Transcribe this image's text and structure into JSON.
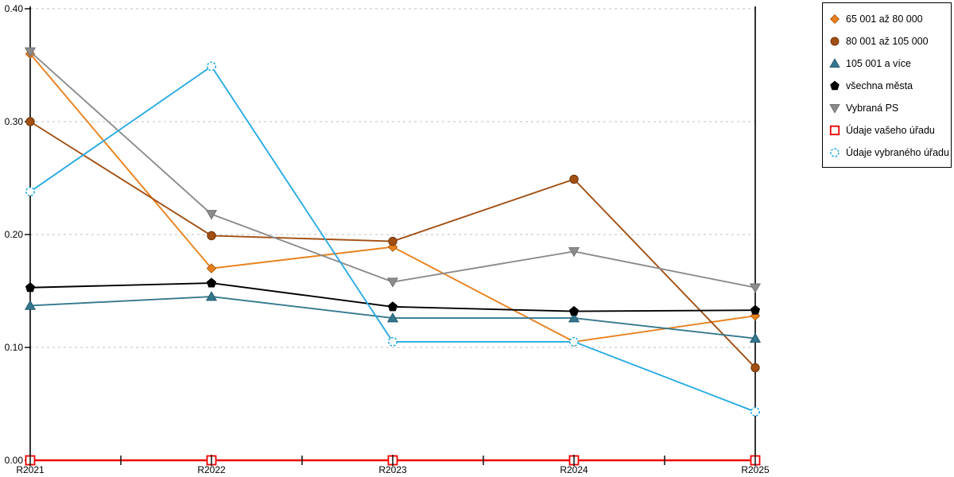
{
  "chart_data": {
    "type": "line",
    "title": "",
    "xlabel": "",
    "ylabel": "",
    "categories": [
      "R2021",
      "R2022",
      "R2023",
      "R2024",
      "R2025"
    ],
    "series": [
      {
        "name": "65 001 až 80 000",
        "marker": "diamond",
        "color": "#E8811C",
        "edge": "#B05A10",
        "values": [
          0.36,
          0.17,
          0.189,
          0.105,
          0.128
        ]
      },
      {
        "name": "80 001 až 105 000",
        "marker": "circle",
        "color": "#A24F13",
        "edge": "#6E3409",
        "values": [
          0.3,
          0.199,
          0.194,
          0.249,
          0.082
        ]
      },
      {
        "name": "105 001 a více",
        "marker": "triangle-up",
        "color": "#35788E",
        "edge": "#20576B",
        "values": [
          0.137,
          0.145,
          0.126,
          0.126,
          0.108
        ]
      },
      {
        "name": "všechna města",
        "marker": "pentagon",
        "color": "#000000",
        "edge": "#000000",
        "values": [
          0.153,
          0.157,
          0.136,
          0.132,
          0.133
        ]
      },
      {
        "name": "Vybraná PS",
        "marker": "triangle-down",
        "color": "#8C8C8C",
        "edge": "#707070",
        "values": [
          0.362,
          0.218,
          0.158,
          0.185,
          0.153
        ]
      },
      {
        "name": "Údaje vašeho úřadu",
        "marker": "open-square",
        "color": "#EE0000",
        "edge": "#EE0000",
        "values": [
          0.0,
          0.0,
          0.0,
          0.0,
          0.0
        ]
      },
      {
        "name": "Údaje vybraného úřadu",
        "marker": "open-circle",
        "color": "#29ABE2",
        "edge": "#29ABE2",
        "values": [
          0.238,
          0.349,
          0.105,
          0.105,
          0.043
        ]
      }
    ],
    "ylim": [
      0,
      0.4
    ],
    "ytick_labels": [
      "0.00",
      "0.10",
      "0.20",
      "0.30",
      "0.40"
    ],
    "grid": true,
    "grid_color": "#BFBFBF",
    "axis_color": "#000000",
    "legend_position": "top-right"
  }
}
